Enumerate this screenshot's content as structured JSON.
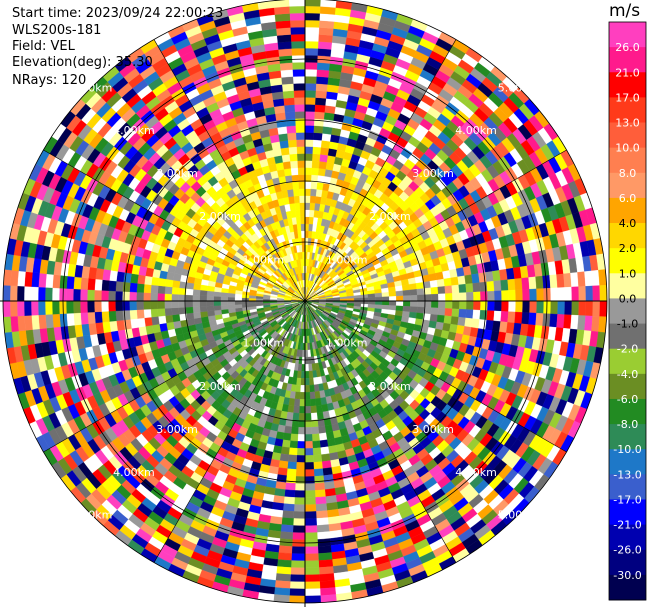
{
  "header": {
    "start_time": "Start time: 2023/09/24 22:00:23",
    "site": "WLS200s-181",
    "field": "Field: VEL",
    "elevation": "Elevation(deg): 35.30",
    "nrays": "NRays: 120"
  },
  "chart_data": {
    "type": "heatmap",
    "projection": "polar-ppi",
    "field": "VEL",
    "units": "m/s",
    "n_rays": 120,
    "range_ring_labels": [
      "1.00km",
      "2.00km",
      "3.00km",
      "4.00km",
      "5.00km"
    ],
    "colorbar": {
      "label": "m/s",
      "ticks": [
        "26.0",
        "21.0",
        "17.0",
        "13.0",
        "10.0",
        "8.0",
        "6.0",
        "4.0",
        "2.0",
        "1.0",
        "0.0",
        "-1.0",
        "-2.0",
        "-4.0",
        "-6.0",
        "-8.0",
        "-10.0",
        "-13.0",
        "-17.0",
        "-21.0",
        "-26.0",
        "-30.0"
      ],
      "colors": [
        "#ff3fbf",
        "#ff1a8c",
        "#ff0000",
        "#ff3a1a",
        "#ff5e3a",
        "#ff7f50",
        "#ff9966",
        "#ffa500",
        "#ffd700",
        "#ffff00",
        "#ffffa0",
        "#999999",
        "#707070",
        "#9acd32",
        "#6b8e23",
        "#228b22",
        "#2e8b57",
        "#1e78c8",
        "#3a5fcd",
        "#0000ff",
        "#0000b0",
        "#000080",
        "#000050"
      ]
    },
    "inner_field": {
      "north_half_dominant": [
        "2.0",
        "4.0",
        "6.0"
      ],
      "south_half_dominant": [
        "-2.0",
        "-4.0",
        "-6.0"
      ],
      "outer_rings": "noise"
    }
  }
}
